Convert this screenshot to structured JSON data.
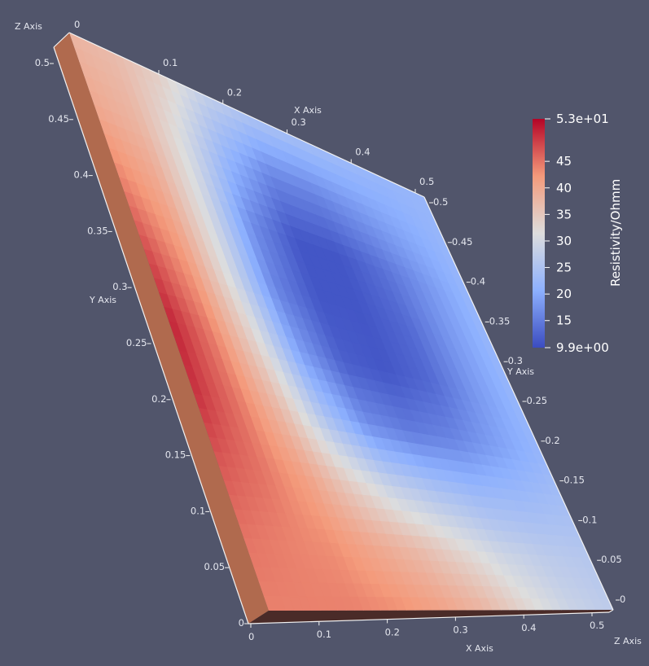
{
  "chart_data": {
    "type": "heatmap",
    "title": "",
    "scalar_name": "Resistivity/Ohmm",
    "range": [
      9.9,
      53
    ],
    "colormap": [
      "#3b4cc0",
      "#8db0fe",
      "#dddddd",
      "#f49a7b",
      "#b40426"
    ],
    "background": "#51556b",
    "colorbar": {
      "title": "Resistivity/Ohmm",
      "max_label": "5.3e+01",
      "min_label": "9.9e+00",
      "tick_labels": [
        "45",
        "40",
        "35",
        "30",
        "25",
        "20",
        "15"
      ],
      "tick_values": [
        45,
        40,
        35,
        30,
        25,
        20,
        15
      ]
    },
    "axes": {
      "x": {
        "title": "X Axis",
        "ticks_near": [
          "0",
          "0.1",
          "0.2",
          "0.3",
          "0.4",
          "0.5"
        ],
        "ticks_far": [
          "0.1",
          "0.2",
          "0.3",
          "0.4",
          "0.5"
        ]
      },
      "y": {
        "title": "Y Axis",
        "ticks_left": [
          "0",
          "0.05",
          "0.1",
          "0.15",
          "0.2",
          "0.25",
          "0.3",
          "0.35",
          "0.4",
          "0.45",
          "0.5"
        ],
        "ticks_right": [
          "0",
          "0.05",
          "0.1",
          "0.15",
          "0.2",
          "0.25",
          "0.3",
          "0.35",
          "0.4",
          "0.45",
          "0.5"
        ]
      },
      "z": {
        "title": "Z Axis",
        "top_label": "0"
      }
    },
    "field": {
      "description_values": "resistivity sampled on a 9x9 grid, rows from y=0.5 (top) to y=0 (bottom), columns from x=0 (left) to x=0.5 (right)",
      "values": [
        [
          38,
          37,
          34,
          28,
          25,
          24,
          23,
          22,
          22
        ],
        [
          40,
          38,
          31,
          22,
          16,
          16,
          18,
          20,
          22
        ],
        [
          44,
          40,
          30,
          17,
          11,
          11,
          14,
          18,
          22
        ],
        [
          48,
          42,
          30,
          16,
          11,
          11,
          13,
          18,
          22
        ],
        [
          51,
          44,
          33,
          19,
          12,
          11,
          13,
          18,
          22
        ],
        [
          50,
          45,
          37,
          25,
          17,
          15,
          16,
          19,
          22
        ],
        [
          47,
          45,
          41,
          34,
          28,
          25,
          23,
          23,
          24
        ],
        [
          45,
          44,
          43,
          40,
          37,
          33,
          29,
          27,
          26
        ],
        [
          44,
          44,
          44,
          43,
          41,
          38,
          33,
          29,
          27
        ]
      ]
    }
  }
}
